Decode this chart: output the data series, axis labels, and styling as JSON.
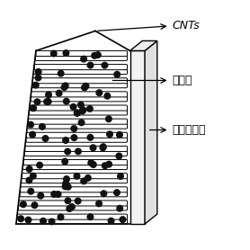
{
  "labels": {
    "CNTs": "CNTs",
    "catalyst": "催化剂",
    "carbon_fiber": "碳纤维基体"
  },
  "background_color": "#ffffff",
  "line_color": "#000000",
  "tube_color": "#ffffff",
  "tube_edge_color": "#000000",
  "dot_color": "#111111",
  "label_fontsize": 9,
  "figsize": [
    2.78,
    2.78
  ],
  "dpi": 100,
  "n_rows": 13
}
